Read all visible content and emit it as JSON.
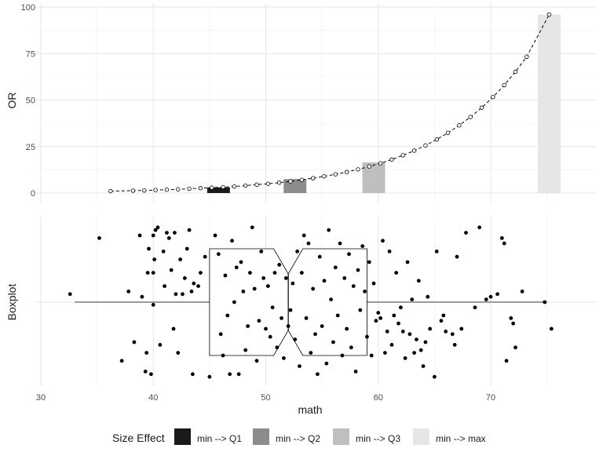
{
  "chart_data": [
    {
      "type": "line",
      "panel": "top",
      "ylabel": "OR",
      "ylim": [
        0,
        100
      ],
      "y_ticks": [
        0,
        25,
        50,
        75,
        100
      ],
      "xlim": [
        30,
        76
      ],
      "line_style": "dashed",
      "line_points": [
        {
          "x": 36.2,
          "y": 1.0
        },
        {
          "x": 38.2,
          "y": 1.3
        },
        {
          "x": 39.2,
          "y": 1.4
        },
        {
          "x": 40.2,
          "y": 1.6
        },
        {
          "x": 41.2,
          "y": 1.8
        },
        {
          "x": 42.2,
          "y": 2.0
        },
        {
          "x": 43.2,
          "y": 2.3
        },
        {
          "x": 44.2,
          "y": 2.6
        },
        {
          "x": 45.2,
          "y": 2.9
        },
        {
          "x": 46.2,
          "y": 3.2
        },
        {
          "x": 47.2,
          "y": 3.5
        },
        {
          "x": 48.2,
          "y": 4.0
        },
        {
          "x": 49.2,
          "y": 4.5
        },
        {
          "x": 50.2,
          "y": 5.0
        },
        {
          "x": 51.2,
          "y": 5.6
        },
        {
          "x": 52.2,
          "y": 6.3
        },
        {
          "x": 53.2,
          "y": 7.1
        },
        {
          "x": 54.2,
          "y": 8.0
        },
        {
          "x": 55.2,
          "y": 9.0
        },
        {
          "x": 56.2,
          "y": 10.1
        },
        {
          "x": 57.2,
          "y": 11.3
        },
        {
          "x": 58.2,
          "y": 12.7
        },
        {
          "x": 59.2,
          "y": 14.3
        },
        {
          "x": 60.2,
          "y": 16.0
        },
        {
          "x": 61.2,
          "y": 18.0
        },
        {
          "x": 62.2,
          "y": 20.3
        },
        {
          "x": 63.2,
          "y": 22.8
        },
        {
          "x": 64.2,
          "y": 25.6
        },
        {
          "x": 65.2,
          "y": 28.8
        },
        {
          "x": 66.2,
          "y": 32.4
        },
        {
          "x": 67.2,
          "y": 36.4
        },
        {
          "x": 68.2,
          "y": 40.9
        },
        {
          "x": 69.2,
          "y": 45.9
        },
        {
          "x": 70.2,
          "y": 51.6
        },
        {
          "x": 71.2,
          "y": 58.0
        },
        {
          "x": 72.2,
          "y": 65.2
        },
        {
          "x": 73.2,
          "y": 73.3
        },
        {
          "x": 75.2,
          "y": 96.0
        }
      ],
      "bars": [
        {
          "label": "min --> Q1",
          "x": 45.8,
          "value": 3,
          "color": "#1a1a1a"
        },
        {
          "label": "min --> Q2",
          "x": 52.6,
          "value": 7.5,
          "color": "#8c8c8c"
        },
        {
          "label": "min --> Q3",
          "x": 59.6,
          "value": 16.5,
          "color": "#bfbfbf"
        },
        {
          "label": "min --> max",
          "x": 75.2,
          "value": 96,
          "color": "#e6e6e6"
        }
      ]
    },
    {
      "type": "scatter",
      "panel": "bottom",
      "subtype": "notched-boxplot-with-jitter",
      "xlabel": "math",
      "ylabel": "Boxplot",
      "xlim": [
        30,
        76
      ],
      "x_ticks": [
        30,
        40,
        50,
        60,
        70
      ],
      "boxplot": {
        "min": 33,
        "q1": 45,
        "median": 52,
        "q3": 59,
        "max": 75,
        "notch_low": 50.7,
        "notch_high": 53.3
      },
      "points": [
        [
          32.6,
          0.15
        ],
        [
          35.2,
          1.2
        ],
        [
          37.2,
          -1.1
        ],
        [
          37.8,
          0.2
        ],
        [
          38.3,
          -0.75
        ],
        [
          38.8,
          1.25
        ],
        [
          39.0,
          0.1
        ],
        [
          39.3,
          -1.3
        ],
        [
          39.4,
          -0.95
        ],
        [
          39.5,
          0.55
        ],
        [
          39.6,
          1.0
        ],
        [
          39.8,
          -1.35
        ],
        [
          40.0,
          1.25
        ],
        [
          40.0,
          -0.05
        ],
        [
          40.0,
          0.55
        ],
        [
          40.1,
          0.8
        ],
        [
          40.2,
          1.35
        ],
        [
          40.4,
          1.4
        ],
        [
          40.6,
          -0.8
        ],
        [
          40.9,
          0.95
        ],
        [
          41.0,
          0.3
        ],
        [
          41.2,
          1.3
        ],
        [
          41.4,
          1.2
        ],
        [
          41.6,
          0.6
        ],
        [
          41.8,
          -0.5
        ],
        [
          41.9,
          1.3
        ],
        [
          42.0,
          0.15
        ],
        [
          42.2,
          -0.95
        ],
        [
          42.4,
          0.8
        ],
        [
          42.6,
          0.15
        ],
        [
          42.8,
          0.45
        ],
        [
          43.0,
          1.0
        ],
        [
          43.2,
          1.35
        ],
        [
          43.4,
          0.2
        ],
        [
          43.5,
          -1.35
        ],
        [
          43.6,
          0.35
        ],
        [
          44.0,
          0.3
        ],
        [
          44.2,
          0.55
        ],
        [
          44.6,
          0.85
        ],
        [
          45.0,
          -1.4
        ],
        [
          45.5,
          1.25
        ],
        [
          45.8,
          0.9
        ],
        [
          46.0,
          -0.6
        ],
        [
          46.2,
          -1.0
        ],
        [
          46.4,
          0.5
        ],
        [
          46.6,
          -0.25
        ],
        [
          46.8,
          -1.35
        ],
        [
          47.0,
          1.15
        ],
        [
          47.2,
          0.0
        ],
        [
          47.4,
          0.65
        ],
        [
          47.6,
          -1.35
        ],
        [
          47.8,
          0.75
        ],
        [
          48.0,
          0.2
        ],
        [
          48.2,
          -0.9
        ],
        [
          48.4,
          -0.45
        ],
        [
          48.6,
          0.55
        ],
        [
          48.8,
          1.4
        ],
        [
          49.0,
          0.25
        ],
        [
          49.2,
          -1.1
        ],
        [
          49.4,
          -0.35
        ],
        [
          49.6,
          0.95
        ],
        [
          49.8,
          0.45
        ],
        [
          50.0,
          -0.5
        ],
        [
          50.2,
          0.3
        ],
        [
          50.4,
          -0.65
        ],
        [
          50.6,
          -0.1
        ],
        [
          50.8,
          0.55
        ],
        [
          51.0,
          -0.85
        ],
        [
          51.2,
          0.7
        ],
        [
          51.4,
          -0.3
        ],
        [
          51.6,
          -1.05
        ],
        [
          51.8,
          0.45
        ],
        [
          52.0,
          -0.45
        ],
        [
          52.2,
          -0.15
        ],
        [
          52.4,
          0.35
        ],
        [
          52.6,
          -0.7
        ],
        [
          52.8,
          0.95
        ],
        [
          53.0,
          -1.2
        ],
        [
          53.2,
          0.55
        ],
        [
          53.4,
          1.25
        ],
        [
          53.6,
          -0.3
        ],
        [
          53.8,
          1.1
        ],
        [
          54.0,
          -0.95
        ],
        [
          54.2,
          0.25
        ],
        [
          54.4,
          -0.6
        ],
        [
          54.6,
          -1.35
        ],
        [
          54.8,
          0.85
        ],
        [
          55.0,
          -0.45
        ],
        [
          55.2,
          0.4
        ],
        [
          55.4,
          -1.15
        ],
        [
          55.6,
          1.35
        ],
        [
          55.8,
          0.05
        ],
        [
          56.0,
          -0.75
        ],
        [
          56.2,
          0.65
        ],
        [
          56.4,
          -0.25
        ],
        [
          56.6,
          1.1
        ],
        [
          56.8,
          -1.0
        ],
        [
          57.0,
          0.45
        ],
        [
          57.2,
          -0.5
        ],
        [
          57.4,
          0.9
        ],
        [
          57.6,
          -0.85
        ],
        [
          57.8,
          0.3
        ],
        [
          58.0,
          -1.3
        ],
        [
          58.2,
          0.6
        ],
        [
          58.4,
          -0.15
        ],
        [
          58.6,
          1.05
        ],
        [
          58.8,
          0.2
        ],
        [
          59.0,
          -0.65
        ],
        [
          59.2,
          0.75
        ],
        [
          59.4,
          -1.0
        ],
        [
          59.6,
          0.35
        ],
        [
          59.8,
          -0.35
        ],
        [
          60.0,
          -0.2
        ],
        [
          60.2,
          -0.3
        ],
        [
          60.4,
          1.15
        ],
        [
          60.6,
          -0.95
        ],
        [
          60.8,
          -0.55
        ],
        [
          61.0,
          0.95
        ],
        [
          61.2,
          -0.8
        ],
        [
          61.4,
          -0.25
        ],
        [
          61.6,
          0.55
        ],
        [
          61.8,
          -0.4
        ],
        [
          62.0,
          -0.1
        ],
        [
          62.2,
          -0.55
        ],
        [
          62.4,
          -1.05
        ],
        [
          62.6,
          0.75
        ],
        [
          62.8,
          -0.6
        ],
        [
          63.0,
          0.05
        ],
        [
          63.2,
          -0.95
        ],
        [
          63.4,
          -0.7
        ],
        [
          63.6,
          0.4
        ],
        [
          63.8,
          -0.9
        ],
        [
          64.0,
          -1.2
        ],
        [
          64.2,
          -0.75
        ],
        [
          64.4,
          0.1
        ],
        [
          64.6,
          -0.5
        ],
        [
          65.0,
          -1.4
        ],
        [
          65.2,
          0.95
        ],
        [
          65.6,
          -0.35
        ],
        [
          65.8,
          -0.25
        ],
        [
          66.0,
          -0.55
        ],
        [
          66.6,
          -0.6
        ],
        [
          66.8,
          -0.8
        ],
        [
          67.0,
          0.85
        ],
        [
          67.4,
          -0.5
        ],
        [
          67.8,
          1.3
        ],
        [
          68.6,
          -0.1
        ],
        [
          69.0,
          1.4
        ],
        [
          69.6,
          0.05
        ],
        [
          70.0,
          0.1
        ],
        [
          70.6,
          0.15
        ],
        [
          71.0,
          1.2
        ],
        [
          71.2,
          1.1
        ],
        [
          71.4,
          -1.1
        ],
        [
          71.8,
          -0.3
        ],
        [
          72.0,
          -0.4
        ],
        [
          72.2,
          -0.85
        ],
        [
          72.8,
          0.2
        ],
        [
          74.8,
          0.0
        ],
        [
          75.4,
          -0.5
        ]
      ]
    }
  ],
  "legend": {
    "title": "Size Effect",
    "items": [
      {
        "label": "min --> Q1",
        "color": "#1a1a1a"
      },
      {
        "label": "min --> Q2",
        "color": "#8c8c8c"
      },
      {
        "label": "min --> Q3",
        "color": "#bfbfbf"
      },
      {
        "label": "min --> max",
        "color": "#e6e6e6"
      }
    ]
  }
}
